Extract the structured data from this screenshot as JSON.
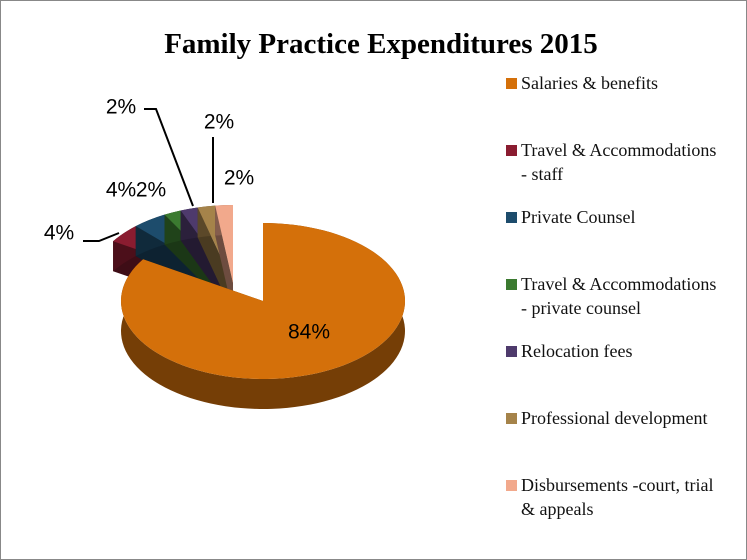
{
  "chart_data": {
    "type": "pie",
    "title": "Family Practice Expenditures 2015",
    "categories": [
      "Salaries & benefits",
      "Travel & Accommodations - staff",
      "Private Counsel",
      "Travel & Accommodations - private counsel",
      "Relocation fees",
      "Professional development",
      "Disbursements -court, trial & appeals"
    ],
    "values": [
      84,
      4,
      4,
      2,
      2,
      2,
      2
    ],
    "value_labels": [
      "84%",
      "4%",
      "4%",
      "2%",
      "2%",
      "2%",
      "2%"
    ],
    "colors": [
      "#d4700a",
      "#8a1c30",
      "#1d4c6c",
      "#3b7a30",
      "#4e3a6c",
      "#a5834a",
      "#f2a98c"
    ],
    "legend": "right"
  }
}
